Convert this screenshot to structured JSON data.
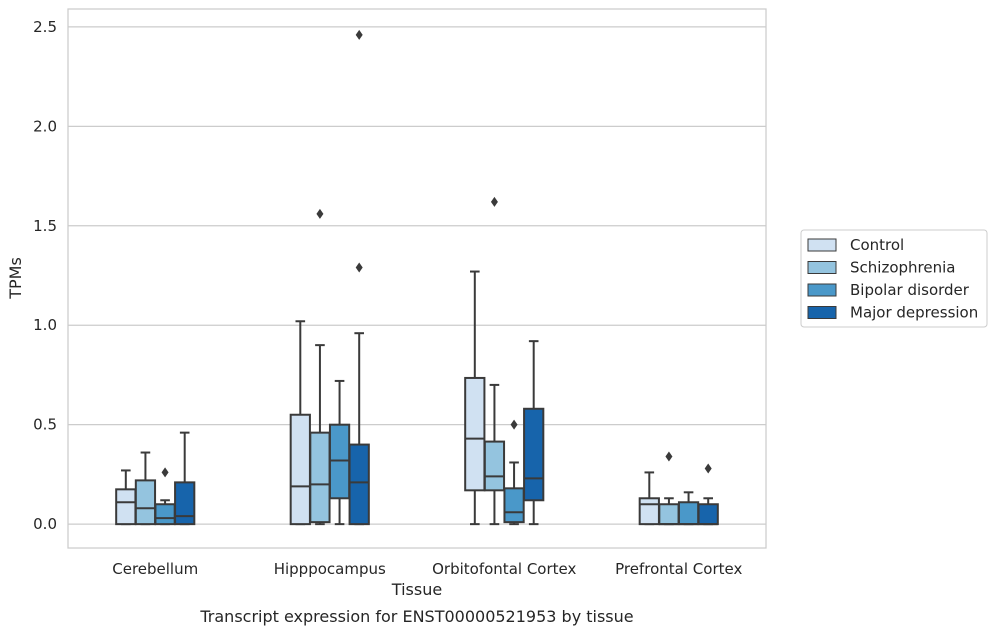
{
  "chart_data": {
    "type": "box",
    "title": "",
    "caption": "Transcript expression for ENST00000521953 by tissue",
    "xlabel": "Tissue",
    "ylabel": "TPMs",
    "ylim": [
      -0.12,
      2.59
    ],
    "yticks": [
      0.0,
      0.5,
      1.0,
      1.5,
      2.0,
      2.5
    ],
    "ytick_labels": [
      "0.0",
      "0.5",
      "1.0",
      "1.5",
      "2.0",
      "2.5"
    ],
    "grid": "horizontal",
    "legend_position": "right",
    "categories": [
      "Cerebellum",
      "Hipppocampus",
      "Orbitofontal Cortex",
      "Prefrontal Cortex"
    ],
    "series": [
      {
        "name": "Control",
        "color": "#d0e1f2",
        "boxes": [
          {
            "whislo": 0.0,
            "q1": 0.0,
            "med": 0.11,
            "q3": 0.175,
            "whishi": 0.27,
            "fliers": []
          },
          {
            "whislo": 0.0,
            "q1": 0.0,
            "med": 0.19,
            "q3": 0.55,
            "whishi": 1.02,
            "fliers": []
          },
          {
            "whislo": 0.0,
            "q1": 0.17,
            "med": 0.43,
            "q3": 0.735,
            "whishi": 1.27,
            "fliers": []
          },
          {
            "whislo": 0.0,
            "q1": 0.0,
            "med": 0.1,
            "q3": 0.13,
            "whishi": 0.26,
            "fliers": []
          }
        ]
      },
      {
        "name": "Schizophrenia",
        "color": "#94c4df",
        "boxes": [
          {
            "whislo": 0.0,
            "q1": 0.0,
            "med": 0.08,
            "q3": 0.22,
            "whishi": 0.36,
            "fliers": []
          },
          {
            "whislo": 0.0,
            "q1": 0.01,
            "med": 0.2,
            "q3": 0.46,
            "whishi": 0.9,
            "fliers": [
              1.56
            ]
          },
          {
            "whislo": 0.0,
            "q1": 0.17,
            "med": 0.24,
            "q3": 0.415,
            "whishi": 0.7,
            "fliers": [
              1.62
            ]
          },
          {
            "whislo": 0.0,
            "q1": 0.0,
            "med": 0.0,
            "q3": 0.1,
            "whishi": 0.13,
            "fliers": [
              0.34
            ]
          }
        ]
      },
      {
        "name": "Bipolar disorder",
        "color": "#4a98c9",
        "boxes": [
          {
            "whislo": 0.0,
            "q1": 0.0,
            "med": 0.03,
            "q3": 0.1,
            "whishi": 0.12,
            "fliers": [
              0.26
            ]
          },
          {
            "whislo": 0.0,
            "q1": 0.13,
            "med": 0.32,
            "q3": 0.5,
            "whishi": 0.72,
            "fliers": []
          },
          {
            "whislo": 0.0,
            "q1": 0.01,
            "med": 0.06,
            "q3": 0.18,
            "whishi": 0.31,
            "fliers": [
              0.5
            ]
          },
          {
            "whislo": 0.0,
            "q1": 0.0,
            "med": 0.0,
            "q3": 0.11,
            "whishi": 0.16,
            "fliers": []
          }
        ]
      },
      {
        "name": "Major depression",
        "color": "#1764ab",
        "boxes": [
          {
            "whislo": 0.0,
            "q1": 0.0,
            "med": 0.04,
            "q3": 0.21,
            "whishi": 0.46,
            "fliers": []
          },
          {
            "whislo": 0.0,
            "q1": 0.0,
            "med": 0.21,
            "q3": 0.4,
            "whishi": 0.96,
            "fliers": [
              1.29,
              2.46
            ]
          },
          {
            "whislo": 0.0,
            "q1": 0.12,
            "med": 0.23,
            "q3": 0.58,
            "whishi": 0.92,
            "fliers": []
          },
          {
            "whislo": 0.0,
            "q1": 0.0,
            "med": 0.0,
            "q3": 0.1,
            "whishi": 0.13,
            "fliers": [
              0.28
            ]
          }
        ]
      }
    ]
  }
}
